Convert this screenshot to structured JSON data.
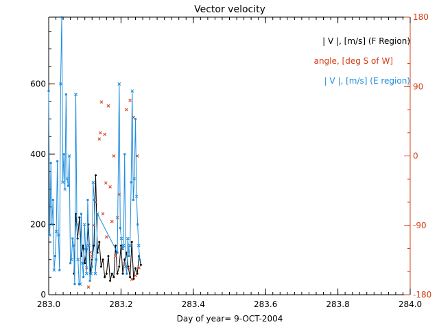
{
  "chart_data": {
    "type": "line",
    "title": "Vector velocity",
    "xlabel": "Day of year= 9-OCT-2004",
    "xlim": [
      283.0,
      284.0
    ],
    "xticks": [
      283.0,
      283.2,
      283.4,
      283.6,
      283.8,
      284.0
    ],
    "xtick_labels": [
      "283.0",
      "283.2",
      "283.4",
      "283.6",
      "283.8",
      "284.0"
    ],
    "ylim": [
      0,
      790
    ],
    "yticks": [
      0,
      200,
      400,
      600
    ],
    "ytick_labels": [
      "0",
      "200",
      "400",
      "600"
    ],
    "y2lim": [
      -180,
      180
    ],
    "y2ticks": [
      -180,
      -90,
      0,
      90,
      180
    ],
    "y2tick_labels": [
      "-180",
      "-90",
      "0",
      "90",
      "180"
    ],
    "legend": {
      "position": "top-right",
      "entries": [
        {
          "label": "| V |, [m/s] (F Region)",
          "color": "#000000"
        },
        {
          "label": "angle, [deg S of W]",
          "color": "#d43c14"
        },
        {
          "label": "| V |, [m/s] (E region)",
          "color": "#1e8cdc"
        }
      ]
    },
    "series": [
      {
        "name": "| V |, [m/s] (F Region)",
        "color": "#000000",
        "axis": "left",
        "style": "line-dot",
        "x": [
          283.07,
          283.075,
          283.08,
          283.085,
          283.09,
          283.095,
          283.1,
          283.105,
          283.11,
          283.115,
          283.12,
          283.125,
          283.13,
          283.135,
          283.14,
          283.145,
          283.15,
          283.155,
          283.16,
          283.165,
          283.17,
          283.175,
          283.18,
          283.185,
          283.19,
          283.195,
          283.2,
          283.205,
          283.21,
          283.215,
          283.22,
          283.225,
          283.23,
          283.235,
          283.24,
          283.245,
          283.25,
          283.255
        ],
        "values": [
          60,
          230,
          160,
          220,
          110,
          140,
          90,
          130,
          200,
          60,
          100,
          140,
          340,
          120,
          150,
          80,
          100,
          50,
          60,
          110,
          40,
          60,
          50,
          140,
          60,
          80,
          140,
          60,
          100,
          120,
          80,
          50,
          150,
          45,
          75,
          60,
          110,
          85
        ]
      },
      {
        "name": "angle, [deg S of W]",
        "color": "#d43c14",
        "axis": "right",
        "style": "marker-x",
        "x": [
          283.105,
          283.11,
          283.115,
          283.12,
          283.125,
          283.13,
          283.14,
          283.143,
          283.146,
          283.15,
          283.155,
          283.158,
          283.16,
          283.165,
          283.17,
          283.175,
          283.18,
          283.185,
          283.19,
          283.195,
          283.205,
          283.21,
          283.215,
          283.22,
          283.225,
          283.23,
          283.235,
          283.24,
          283.245,
          283.25
        ],
        "values": [
          -145,
          -170,
          -125,
          -130,
          -90,
          -60,
          22,
          30,
          70,
          -75,
          28,
          -35,
          -105,
          65,
          -40,
          -85,
          0,
          -130,
          -80,
          -50,
          -120,
          -140,
          60,
          -145,
          72,
          -160,
          50,
          -155,
          0,
          -145
        ]
      },
      {
        "name": "| V |, [m/s] (E region)",
        "color": "#1e8cdc",
        "axis": "left",
        "style": "line-square-x",
        "x": [
          283.0,
          283.003,
          283.006,
          283.009,
          283.012,
          283.015,
          283.018,
          283.021,
          283.024,
          283.027,
          283.03,
          283.033,
          283.036,
          283.039,
          283.042,
          283.045,
          283.048,
          283.051,
          283.054,
          283.057,
          283.06,
          283.063,
          283.066,
          283.069,
          283.072,
          283.075,
          283.078,
          283.081,
          283.084,
          283.087,
          283.09,
          283.093,
          283.096,
          283.099,
          283.102,
          283.105,
          283.108,
          283.111,
          283.114,
          283.117,
          283.12,
          283.123,
          283.126,
          283.129,
          283.132,
          283.135,
          283.19,
          283.195,
          283.198,
          283.201,
          283.204,
          283.207,
          283.21,
          283.213,
          283.216,
          283.219,
          283.222,
          283.225,
          283.228,
          283.231,
          283.234,
          283.237,
          283.24,
          283.243,
          283.246,
          283.249,
          283.252
        ],
        "values": [
          580,
          170,
          375,
          200,
          270,
          70,
          110,
          180,
          380,
          170,
          70,
          600,
          790,
          320,
          400,
          300,
          570,
          330,
          310,
          395,
          90,
          100,
          160,
          140,
          30,
          570,
          200,
          100,
          30,
          30,
          230,
          90,
          50,
          200,
          130,
          60,
          270,
          140,
          40,
          60,
          80,
          320,
          270,
          60,
          100,
          230,
          120,
          600,
          190,
          160,
          130,
          140,
          400,
          80,
          60,
          160,
          110,
          140,
          320,
          580,
          270,
          330,
          500,
          280,
          200,
          140,
          100
        ]
      }
    ]
  }
}
